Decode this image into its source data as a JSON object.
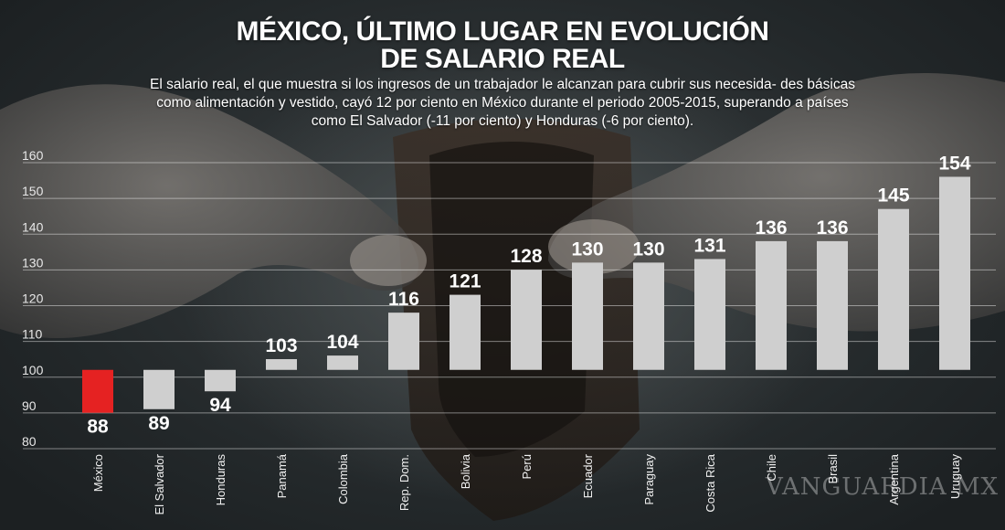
{
  "chart_data": {
    "type": "bar",
    "title_line1": "MÉXICO, ÚLTIMO LUGAR EN EVOLUCIÓN",
    "title_line2": "DE SALARIO REAL",
    "subtitle": "El salario real, el que muestra si los ingresos de un trabajador le alcanzan para cubrir sus necesida- des básicas como alimentación y vestido, cayó 12 por ciento en México durante el periodo 2005-2015, superando a países como El Salvador (-11 por ciento) y Honduras (-6 por ciento).",
    "baseline": 100,
    "ylim": [
      80,
      160
    ],
    "yticks": [
      80,
      90,
      100,
      110,
      120,
      130,
      140,
      150,
      160
    ],
    "grid": true,
    "categories": [
      "México",
      "El Salvador",
      "Honduras",
      "Panamá",
      "Colombia",
      "Rep. Dom.",
      "Bolivia",
      "Perú",
      "Ecuador",
      "Paraguay",
      "Costa Rica",
      "Chile",
      "Brasil",
      "Argentina",
      "Uruguay"
    ],
    "values": [
      88,
      89,
      94,
      103,
      104,
      116,
      121,
      128,
      130,
      130,
      131,
      136,
      136,
      145,
      154
    ],
    "colors": {
      "highlight": "#e52222",
      "default": "#cfcfcf"
    },
    "highlight_index": 0
  },
  "watermark": "VANGUARDIA MX"
}
